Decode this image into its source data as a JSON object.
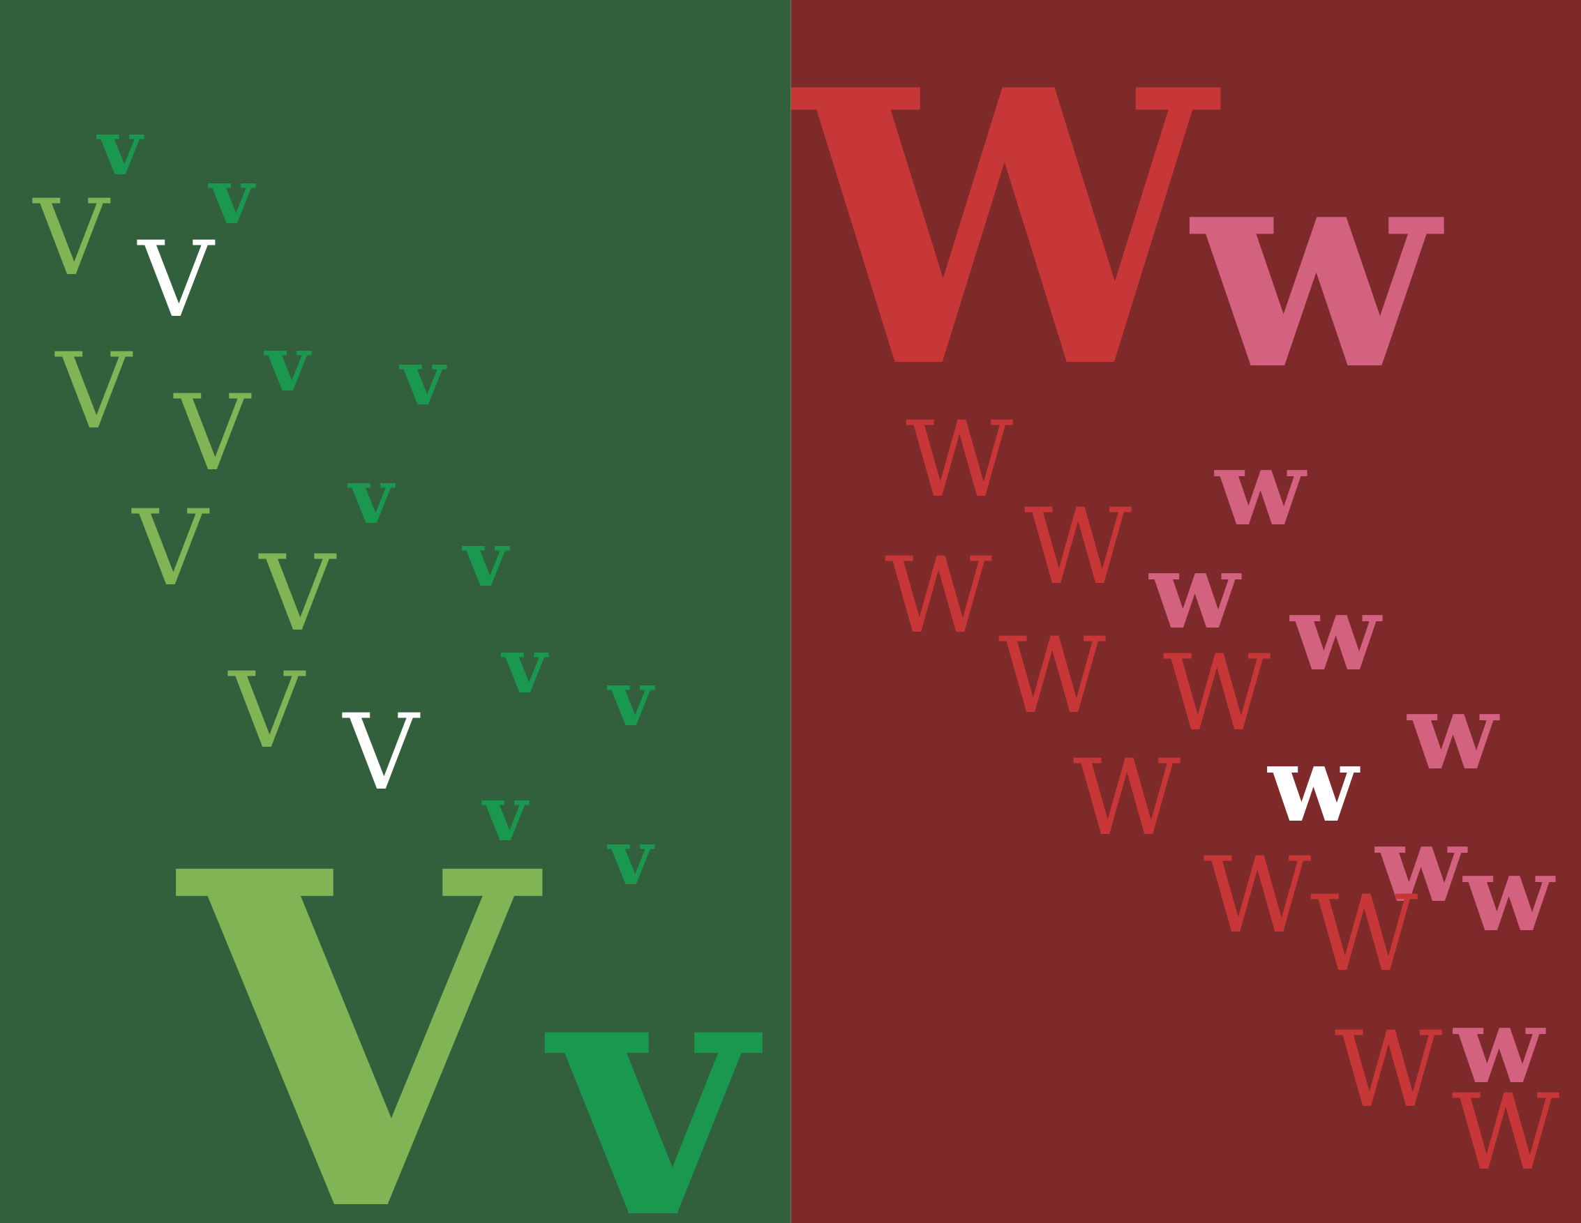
{
  "colors": {
    "green_background": "#325f3c",
    "red_background": "#7e2a2b",
    "light_green": "#80b455",
    "dark_green": "#1b9850",
    "white": "#ffffff",
    "red": "#c83737",
    "pink": "#d36280"
  },
  "v_panel": {
    "big_upper": "V",
    "big_lower": "v",
    "glyphs": [
      {
        "char": "v",
        "color": "dark_green"
      },
      {
        "char": "v",
        "color": "dark_green"
      },
      {
        "char": "V",
        "color": "light_green"
      },
      {
        "char": "V",
        "color": "white"
      },
      {
        "char": "V",
        "color": "light_green"
      },
      {
        "char": "v",
        "color": "dark_green"
      },
      {
        "char": "v",
        "color": "dark_green"
      },
      {
        "char": "V",
        "color": "light_green"
      },
      {
        "char": "v",
        "color": "dark_green"
      },
      {
        "char": "V",
        "color": "light_green"
      },
      {
        "char": "V",
        "color": "light_green"
      },
      {
        "char": "v",
        "color": "dark_green"
      },
      {
        "char": "v",
        "color": "dark_green"
      },
      {
        "char": "v",
        "color": "dark_green"
      },
      {
        "char": "V",
        "color": "light_green"
      },
      {
        "char": "V",
        "color": "white"
      },
      {
        "char": "v",
        "color": "dark_green"
      },
      {
        "char": "v",
        "color": "dark_green"
      }
    ]
  },
  "w_panel": {
    "big_upper": "W",
    "big_lower": "w",
    "glyphs": [
      {
        "char": "W",
        "color": "red"
      },
      {
        "char": "w",
        "color": "pink"
      },
      {
        "char": "W",
        "color": "red"
      },
      {
        "char": "W",
        "color": "red"
      },
      {
        "char": "w",
        "color": "pink"
      },
      {
        "char": "w",
        "color": "pink"
      },
      {
        "char": "W",
        "color": "red"
      },
      {
        "char": "W",
        "color": "red"
      },
      {
        "char": "w",
        "color": "pink"
      },
      {
        "char": "w",
        "color": "white"
      },
      {
        "char": "W",
        "color": "red"
      },
      {
        "char": "w",
        "color": "pink"
      },
      {
        "char": "w",
        "color": "pink"
      },
      {
        "char": "W",
        "color": "red"
      },
      {
        "char": "W",
        "color": "red"
      },
      {
        "char": "w",
        "color": "pink"
      },
      {
        "char": "W",
        "color": "red"
      },
      {
        "char": "W",
        "color": "red"
      }
    ]
  }
}
